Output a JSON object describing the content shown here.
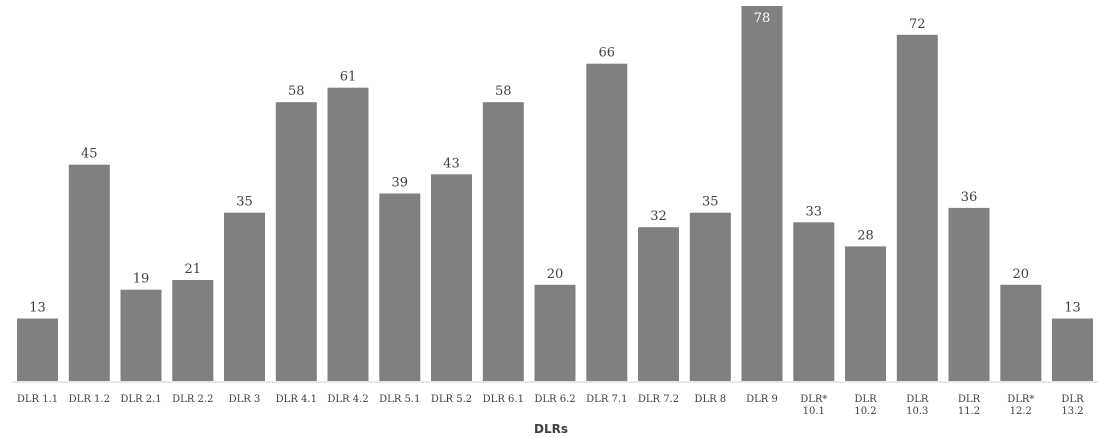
{
  "chart_data": {
    "type": "bar",
    "title": "",
    "xlabel": "DLRs",
    "ylabel": "",
    "ylim": [
      0,
      78
    ],
    "grid": false,
    "legend": "none",
    "bar_color": "#808080",
    "categories": [
      [
        "DLR 1.1"
      ],
      [
        "DLR 1.2"
      ],
      [
        "DLR 2.1"
      ],
      [
        "DLR 2.2"
      ],
      [
        "DLR 3"
      ],
      [
        "DLR 4.1"
      ],
      [
        "DLR 4.2"
      ],
      [
        "DLR 5.1"
      ],
      [
        "DLR 5.2"
      ],
      [
        "DLR 6.1"
      ],
      [
        "DLR 6.2"
      ],
      [
        "DLR 7.1"
      ],
      [
        "DLR 7.2"
      ],
      [
        "DLR 8"
      ],
      [
        "DLR 9"
      ],
      [
        "DLR*",
        "10.1"
      ],
      [
        "DLR",
        "10.2"
      ],
      [
        "DLR",
        "10.3"
      ],
      [
        "DLR",
        "11.2"
      ],
      [
        "DLR*",
        "12.2"
      ],
      [
        "DLR",
        "13.2"
      ]
    ],
    "values": [
      13,
      45,
      19,
      21,
      35,
      58,
      61,
      39,
      43,
      58,
      20,
      66,
      32,
      35,
      78,
      33,
      28,
      72,
      36,
      20,
      13
    ]
  }
}
